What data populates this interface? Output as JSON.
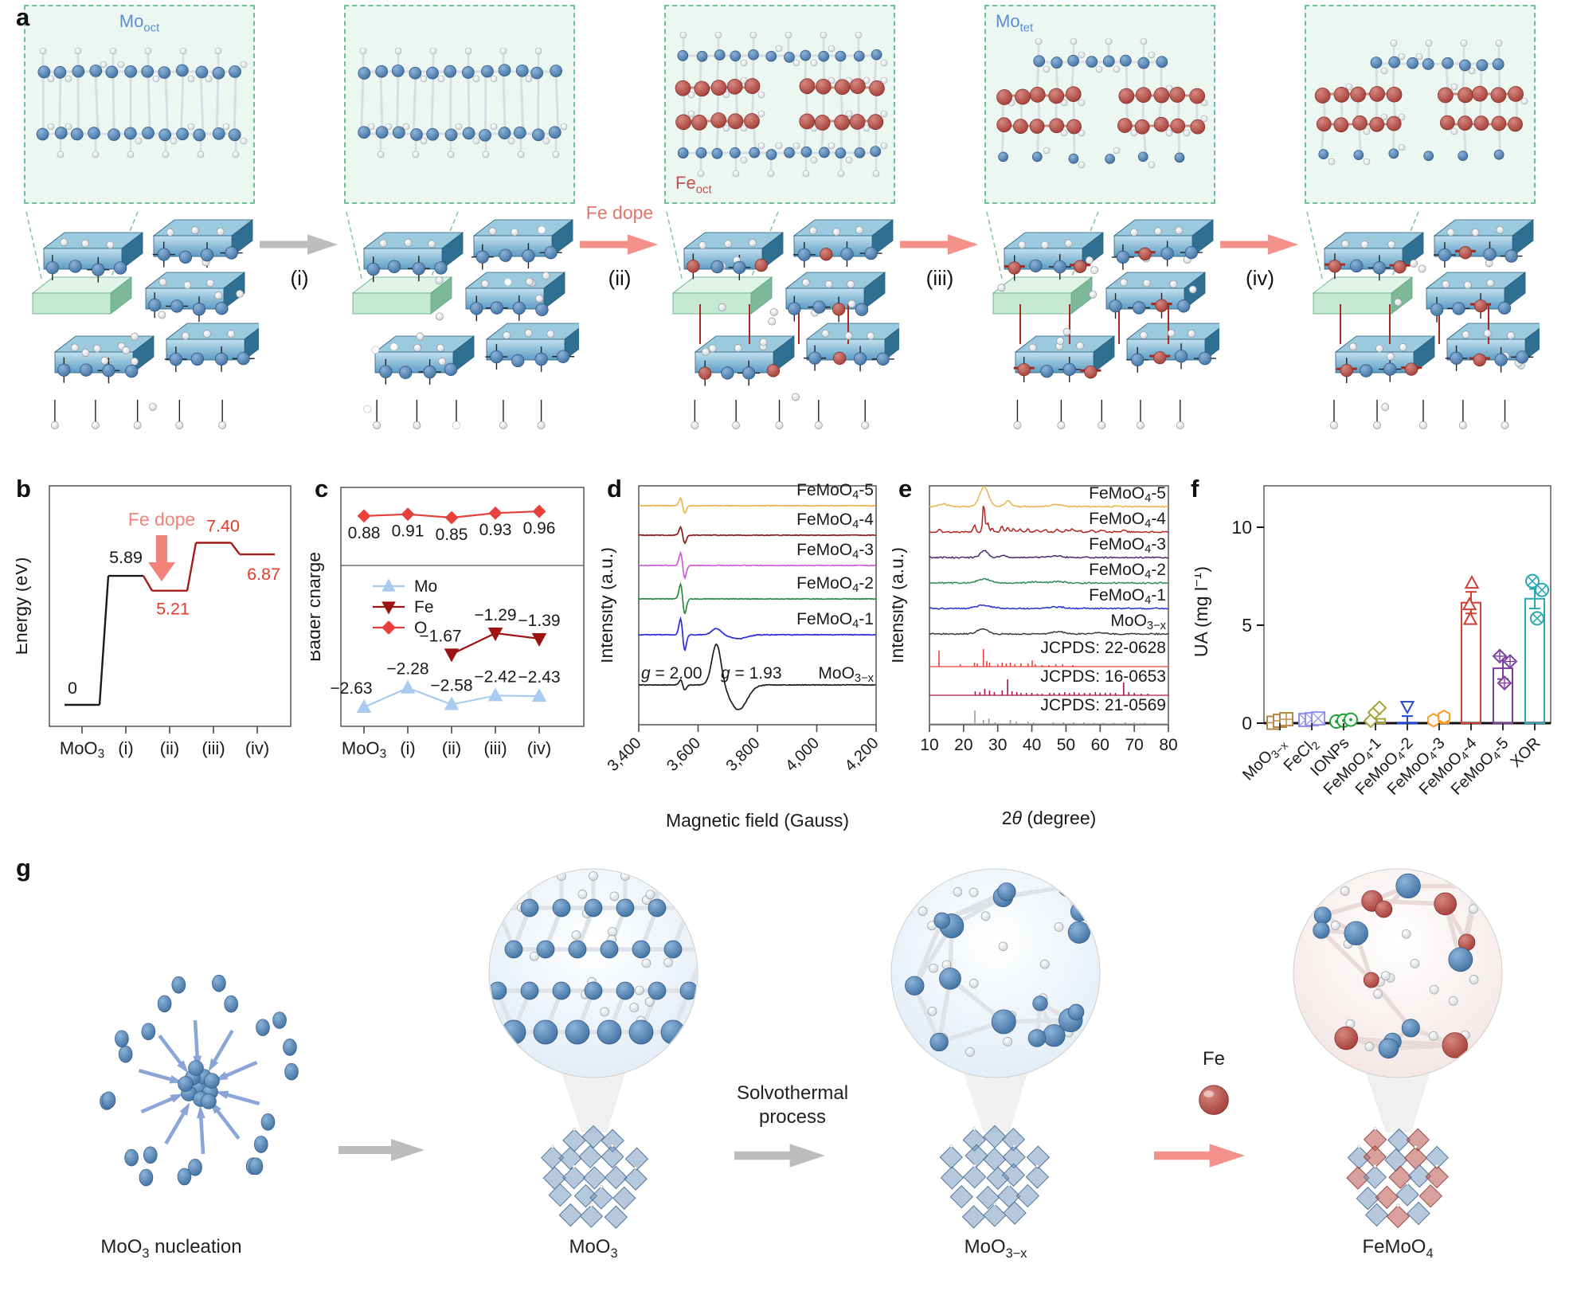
{
  "panels": {
    "a": "a",
    "b": "b",
    "c": "c",
    "d": "d",
    "e": "e",
    "f": "f",
    "g": "g"
  },
  "panel_a": {
    "inset_labels": {
      "stage1": "Mo_{oct}",
      "stage3": "Fe_{oct}",
      "stage4": "Mo_{tet}"
    },
    "fe_dope_label": "Fe dope",
    "step_labels": [
      "(i)",
      "(ii)",
      "(iii)",
      "(iv)"
    ],
    "atom_legend": {
      "mo_color": "#4a7eb5",
      "fe_color": "#b9524e",
      "o_color": "#e7eaec"
    }
  },
  "chart_data": [
    {
      "id": "b",
      "type": "line-step",
      "ylabel": "Energy (eV)",
      "categories": [
        "MoO_{3}",
        "(i)",
        "(ii)",
        "(iii)",
        "(iv)"
      ],
      "values": [
        0,
        5.89,
        5.21,
        7.4,
        6.87
      ],
      "value_labels": [
        "0",
        "5.89",
        "5.21",
        "7.40",
        "6.87"
      ],
      "value_label_colors": [
        "#1a1a1a",
        "#1a1a1a",
        "#e8392f",
        "#e8392f",
        "#e8392f"
      ],
      "line_color_start": "#1a1a1a",
      "line_color_after": "#a01d18",
      "annotation": {
        "text": "Fe dope",
        "color": "#f2837a"
      }
    },
    {
      "id": "c",
      "type": "line-multi",
      "ylabel": "Bader charge",
      "categories": [
        "MoO_{3}",
        "(i)",
        "(ii)",
        "(iii)",
        "(iv)"
      ],
      "series": [
        {
          "name": "Mo",
          "color": "#a9cbf0",
          "marker": "triangle-up",
          "values": [
            -2.63,
            -2.28,
            -2.58,
            -2.42,
            -2.43
          ],
          "labels": [
            "−2.63",
            "−2.28",
            "−2.58",
            "−2.42",
            "−2.43"
          ]
        },
        {
          "name": "Fe",
          "color": "#9e1212",
          "marker": "triangle-down",
          "values": [
            null,
            null,
            -1.67,
            -1.29,
            -1.39
          ],
          "labels": [
            null,
            null,
            "−1.67",
            "−1.29",
            "−1.39"
          ]
        },
        {
          "name": "O",
          "color": "#e8413c",
          "marker": "diamond",
          "values": [
            0.88,
            0.91,
            0.85,
            0.93,
            0.96
          ],
          "labels": [
            "0.88",
            "0.91",
            "0.85",
            "0.93",
            "0.96"
          ]
        }
      ]
    },
    {
      "id": "d",
      "type": "epr",
      "ylabel": "Intensity (a.u.)",
      "xlabel": "Magnetic field (Gauss)",
      "xrange": [
        3400,
        4200
      ],
      "xticks": [
        [
          3400,
          "3,400"
        ],
        [
          3600,
          "3,600"
        ],
        [
          3800,
          "3,800"
        ],
        [
          4000,
          "4,000"
        ],
        [
          4200,
          "4,200"
        ]
      ],
      "wiggle_center": 3548,
      "broad_center": 3662,
      "annotations": [
        {
          "text": "~{g} = 2.00",
          "g": 2.0
        },
        {
          "text": "~{g} = 1.93",
          "g": 1.93
        }
      ],
      "series": [
        {
          "name": "FeMoO_{4}-5",
          "color": "#f0b24f",
          "wiggle": 13,
          "broad": 0
        },
        {
          "name": "FeMoO_{4}-4",
          "color": "#8c1d16",
          "wiggle": 14,
          "broad": 0
        },
        {
          "name": "FeMoO_{4}-3",
          "color": "#cb5fd6",
          "wiggle": 22,
          "broad": 0
        },
        {
          "name": "FeMoO_{4}-2",
          "color": "#2c8a3e",
          "wiggle": 26,
          "broad": 0
        },
        {
          "name": "FeMoO_{4}-1",
          "color": "#2b2bdc",
          "wiggle": 28,
          "broad": 8
        },
        {
          "name": "MoO_{3−x}",
          "color": "#1c1c1c",
          "wiggle": 9,
          "broad": 52
        }
      ]
    },
    {
      "id": "e",
      "type": "xrd",
      "ylabel": "Intensity (a.u.)",
      "xlabel": "2~{θ} (degree)",
      "xrange": [
        10,
        80
      ],
      "xticks": [
        10,
        20,
        30,
        40,
        50,
        60,
        70,
        80
      ],
      "series": [
        {
          "name": "FeMoO_{4}-5",
          "kind": "curve",
          "color": "#f0b24f",
          "peaks": [
            [
              26,
              25,
              1.8
            ],
            [
              33,
              7,
              1.3
            ],
            [
              14,
              3.5,
              1.6
            ],
            [
              47,
              2.5,
              2.2
            ]
          ]
        },
        {
          "name": "FeMoO_{4}-4",
          "kind": "curve",
          "color": "#b22622",
          "peaks": [
            [
              13,
              3,
              0.5
            ],
            [
              23.2,
              9,
              0.5
            ],
            [
              25.9,
              37,
              0.42
            ],
            [
              27,
              12,
              0.5
            ],
            [
              28.4,
              4,
              0.5
            ],
            [
              31.2,
              8,
              0.5
            ],
            [
              33,
              6,
              0.5
            ],
            [
              34.6,
              4,
              0.5
            ],
            [
              36.6,
              4,
              0.5
            ],
            [
              38.8,
              4,
              0.45
            ],
            [
              41.5,
              3,
              0.6
            ],
            [
              44,
              3,
              0.6
            ],
            [
              47.5,
              3,
              0.7
            ],
            [
              50,
              2.5,
              0.6
            ],
            [
              51.8,
              4,
              0.7
            ],
            [
              54,
              2,
              0.6
            ],
            [
              57.5,
              2,
              0.7
            ],
            [
              60.5,
              2.5,
              0.8
            ],
            [
              67,
              2,
              0.8
            ]
          ]
        },
        {
          "name": "FeMoO_{4}-3",
          "kind": "curve",
          "color": "#4a2a68",
          "peaks": [
            [
              26,
              9,
              1.5
            ],
            [
              31.5,
              3,
              1.3
            ],
            [
              47,
              2,
              2.5
            ]
          ]
        },
        {
          "name": "FeMoO_{4}-2",
          "kind": "curve",
          "color": "#2e8b57",
          "peaks": [
            [
              26,
              5,
              2.6
            ],
            [
              41,
              1.5,
              2.5
            ],
            [
              47.5,
              2,
              2.6
            ]
          ]
        },
        {
          "name": "FeMoO_{4}-1",
          "kind": "curve",
          "color": "#2233cc",
          "peaks": [
            [
              26,
              4,
              3
            ],
            [
              47.5,
              2,
              3
            ]
          ]
        },
        {
          "name": "MoO_{3−x}",
          "kind": "curve",
          "color": "#3a3a3a",
          "peaks": [
            [
              25.5,
              6,
              2.3
            ],
            [
              47.5,
              3,
              2.6
            ],
            [
              60,
              1.5,
              2.5
            ]
          ]
        },
        {
          "name": "JCPDS: 22-0628",
          "kind": "sticks",
          "color": "#e8413c",
          "sticks": [
            [
              12.8,
              20
            ],
            [
              19,
              3
            ],
            [
              23.2,
              5
            ],
            [
              24,
              4
            ],
            [
              25.8,
              22
            ],
            [
              26.8,
              7
            ],
            [
              27.6,
              5
            ],
            [
              30,
              3
            ],
            [
              31.3,
              5
            ],
            [
              32.5,
              4
            ],
            [
              33.7,
              5
            ],
            [
              35,
              3
            ],
            [
              36.8,
              4
            ],
            [
              38.9,
              4
            ],
            [
              40.1,
              8
            ],
            [
              41,
              3
            ],
            [
              43,
              2
            ],
            [
              45,
              2
            ],
            [
              47,
              3
            ],
            [
              49,
              3
            ],
            [
              52,
              2
            ]
          ]
        },
        {
          "name": "JCPDS: 16-0653",
          "kind": "sticks",
          "color": "#a8154f",
          "sticks": [
            [
              23.4,
              5
            ],
            [
              24.8,
              4
            ],
            [
              26.2,
              8
            ],
            [
              27.6,
              6
            ],
            [
              29,
              4
            ],
            [
              31.3,
              6
            ],
            [
              32.9,
              20
            ],
            [
              34.2,
              5
            ],
            [
              35.6,
              4
            ],
            [
              36.8,
              3
            ],
            [
              38.4,
              3
            ],
            [
              40,
              3
            ],
            [
              41.6,
              2
            ],
            [
              43,
              2
            ],
            [
              45.2,
              3
            ],
            [
              46.5,
              3
            ],
            [
              48,
              3
            ],
            [
              49.6,
              4
            ],
            [
              51,
              3
            ],
            [
              52.4,
              4
            ],
            [
              53.8,
              3
            ],
            [
              55.4,
              3
            ],
            [
              57,
              3
            ],
            [
              58.6,
              4
            ],
            [
              60,
              3
            ],
            [
              61.5,
              3
            ],
            [
              63,
              3
            ],
            [
              64.5,
              3
            ],
            [
              66.9,
              16
            ],
            [
              68.4,
              4
            ],
            [
              70,
              3
            ],
            [
              72,
              2
            ],
            [
              74,
              2
            ]
          ]
        },
        {
          "name": "JCPDS: 21-0569",
          "kind": "sticks",
          "color": "#9a9a9a",
          "sticks": [
            [
              23.3,
              17
            ],
            [
              25.8,
              5
            ],
            [
              27.4,
              7
            ],
            [
              29.2,
              2
            ],
            [
              33.7,
              5
            ],
            [
              35.4,
              3
            ],
            [
              38.9,
              3
            ],
            [
              40.5,
              2
            ],
            [
              46.3,
              2
            ],
            [
              49.2,
              2
            ],
            [
              52.2,
              2
            ],
            [
              55.2,
              2
            ],
            [
              58.2,
              1.5
            ],
            [
              61,
              1.5
            ],
            [
              64,
              1.5
            ],
            [
              67.4,
              2
            ],
            [
              70,
              1.5
            ],
            [
              73,
              1.5
            ]
          ]
        }
      ]
    },
    {
      "id": "f",
      "type": "bar",
      "ylabel": "UA (mg l^{−1})",
      "yticks": [
        0,
        5,
        10
      ],
      "ylim": [
        0,
        12
      ],
      "categories": [
        "MoO_{3−x}",
        "FeCl_{2}",
        "IONPs",
        "FeMoO_{4}-1",
        "FeMoO_{4}-2",
        "FeMoO_{4}-3",
        "FeMoO_{4}-4",
        "FeMoO_{4}-5",
        "XOR"
      ],
      "bars": [
        {
          "mean": 0.12,
          "err": 0.1,
          "color": "#b3894a",
          "marker": "square-grid",
          "points": [
            0.02,
            0.12,
            0.2
          ]
        },
        {
          "mean": 0.2,
          "err": 0.07,
          "color": "#9191ea",
          "marker": "square-x",
          "points": [
            0.16,
            0.2,
            0.24
          ]
        },
        {
          "mean": 0.13,
          "err": 0.06,
          "color": "#1ea032",
          "marker": "circle-dot",
          "points": [
            0.08,
            0.13,
            0.18
          ]
        },
        {
          "mean": 0.22,
          "err": 0.25,
          "color": "#a8a23c",
          "marker": "diamond",
          "points": [
            0.12,
            0.55,
            0.78
          ]
        },
        {
          "mean": 0.03,
          "err": 0.33,
          "color": "#2547c9",
          "marker": "triangle-down",
          "points": [
            0.85
          ]
        },
        {
          "mean": 0.06,
          "err": 0.08,
          "color": "#f59a23",
          "marker": "hexagon",
          "points": [
            0.15,
            0.32
          ]
        },
        {
          "mean": 6.15,
          "err": 0.55,
          "color": "#cf3f33",
          "marker": "triangle-up",
          "points": [
            5.3,
            6.05,
            7.15
          ]
        },
        {
          "mean": 2.8,
          "err": 0.55,
          "color": "#7b3fa0",
          "marker": "diamond-plus",
          "points": [
            2.05,
            3.15,
            3.42
          ]
        },
        {
          "mean": 6.35,
          "err": 0.5,
          "color": "#2aa7b5",
          "marker": "circle-x",
          "points": [
            5.35,
            6.8,
            7.25
          ]
        }
      ]
    }
  ],
  "panel_g": {
    "labels": [
      "MoO_{3} nucleation",
      "MoO_{3}",
      "MoO_{3−x}",
      "FeMoO_{4}"
    ],
    "solvothermal_line1": "Solvothermal",
    "solvothermal_line2": "process",
    "fe_label": "Fe"
  }
}
